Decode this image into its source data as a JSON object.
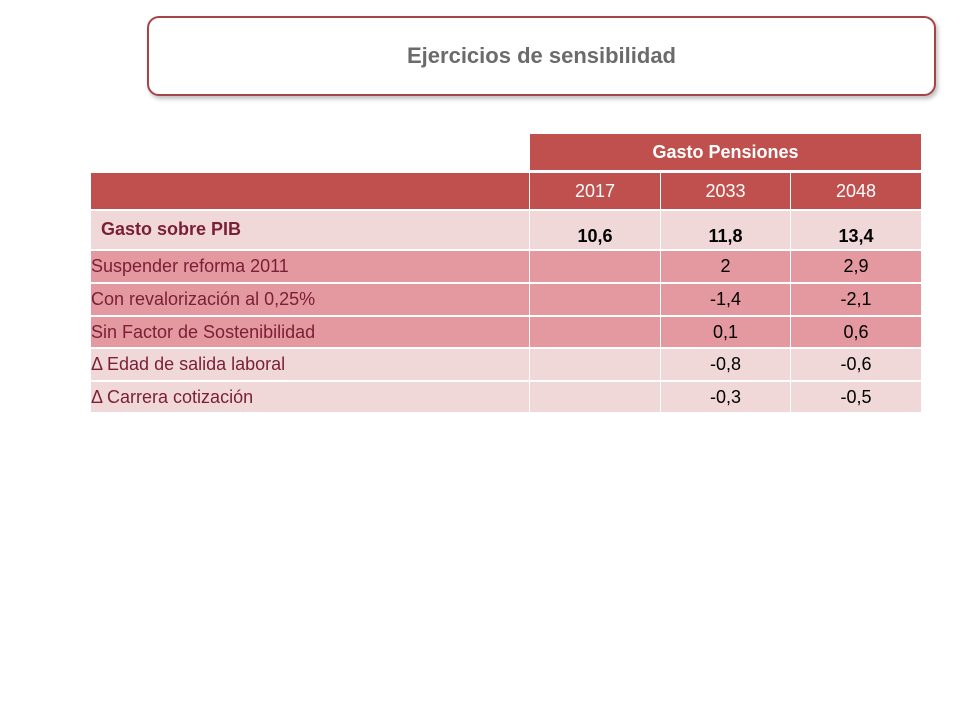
{
  "title": "Ejercicios de sensibilidad",
  "table": {
    "group_header": "Gasto Pensiones",
    "years": [
      "2017",
      "2033",
      "2048"
    ],
    "main_row": {
      "label": "Gasto sobre PIB",
      "values": [
        "10,6",
        "11,8",
        "13,4"
      ]
    },
    "rows": [
      {
        "label": "Suspender reforma 2011",
        "values": [
          "",
          "2",
          "2,9"
        ]
      },
      {
        "label": "Con revalorización al 0,25%",
        "values": [
          "",
          "-1,4",
          "-2,1"
        ]
      },
      {
        "label": "Sin Factor de Sostenibilidad",
        "values": [
          "",
          "0,1",
          "0,6"
        ]
      },
      {
        "label": "Δ Edad de salida laboral",
        "values": [
          "",
          "-0,8",
          "-0,6"
        ]
      },
      {
        "label": "Δ Carrera cotización",
        "values": [
          "",
          "-0,3",
          "-0,5"
        ]
      }
    ]
  },
  "colors": {
    "header": "#c0504d",
    "row_light": "#f0d8d8",
    "row_mid": "#e4989f",
    "label_text": "#7a1f35"
  }
}
